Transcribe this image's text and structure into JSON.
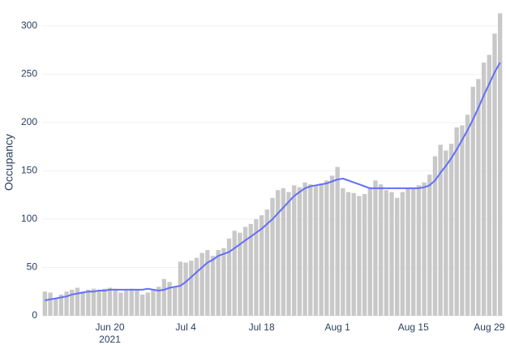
{
  "chart_data": {
    "type": "combo",
    "y_label": "Occupancy",
    "x": [
      "2021-06-08",
      "2021-06-09",
      "2021-06-10",
      "2021-06-11",
      "2021-06-12",
      "2021-06-13",
      "2021-06-14",
      "2021-06-15",
      "2021-06-16",
      "2021-06-17",
      "2021-06-18",
      "2021-06-19",
      "2021-06-20",
      "2021-06-21",
      "2021-06-22",
      "2021-06-23",
      "2021-06-24",
      "2021-06-25",
      "2021-06-26",
      "2021-06-27",
      "2021-06-28",
      "2021-06-29",
      "2021-06-30",
      "2021-07-01",
      "2021-07-02",
      "2021-07-03",
      "2021-07-04",
      "2021-07-05",
      "2021-07-06",
      "2021-07-07",
      "2021-07-08",
      "2021-07-09",
      "2021-07-10",
      "2021-07-11",
      "2021-07-12",
      "2021-07-13",
      "2021-07-14",
      "2021-07-15",
      "2021-07-16",
      "2021-07-17",
      "2021-07-18",
      "2021-07-19",
      "2021-07-20",
      "2021-07-21",
      "2021-07-22",
      "2021-07-23",
      "2021-07-24",
      "2021-07-25",
      "2021-07-26",
      "2021-07-27",
      "2021-07-28",
      "2021-07-29",
      "2021-07-30",
      "2021-07-31",
      "2021-08-01",
      "2021-08-02",
      "2021-08-03",
      "2021-08-04",
      "2021-08-05",
      "2021-08-06",
      "2021-08-07",
      "2021-08-08",
      "2021-08-09",
      "2021-08-10",
      "2021-08-11",
      "2021-08-12",
      "2021-08-13",
      "2021-08-14",
      "2021-08-15",
      "2021-08-16",
      "2021-08-17",
      "2021-08-18",
      "2021-08-19",
      "2021-08-20",
      "2021-08-21",
      "2021-08-22",
      "2021-08-23",
      "2021-08-24",
      "2021-08-25",
      "2021-08-26",
      "2021-08-27",
      "2021-08-28",
      "2021-08-29",
      "2021-08-30",
      "2021-08-31"
    ],
    "series": [
      {
        "type": "bar",
        "color": "#c8c8c8",
        "values": [
          25,
          24,
          18,
          22,
          25,
          27,
          29,
          25,
          27,
          28,
          27,
          28,
          29,
          28,
          24,
          26,
          28,
          27,
          22,
          24,
          27,
          30,
          38,
          35,
          30,
          56,
          55,
          57,
          60,
          65,
          68,
          62,
          68,
          70,
          80,
          88,
          86,
          92,
          95,
          100,
          104,
          110,
          122,
          130,
          132,
          128,
          135,
          133,
          138,
          136,
          135,
          137,
          140,
          145,
          154,
          132,
          128,
          127,
          124,
          126,
          133,
          140,
          136,
          130,
          128,
          122,
          128,
          132,
          132,
          135,
          138,
          146,
          165,
          177,
          171,
          178,
          195,
          197,
          208,
          237,
          245,
          262,
          270,
          292,
          313
        ]
      },
      {
        "type": "line",
        "color": "#636efa",
        "values": [
          16,
          17,
          18,
          19,
          20,
          22,
          23,
          24,
          25,
          25,
          26,
          26,
          27,
          27,
          27,
          27,
          27,
          27,
          27,
          28,
          27,
          26,
          27,
          29,
          30,
          31,
          35,
          40,
          45,
          50,
          55,
          58,
          62,
          64,
          66,
          70,
          74,
          78,
          82,
          86,
          90,
          95,
          100,
          106,
          112,
          118,
          124,
          128,
          132,
          134,
          135,
          136,
          137,
          139,
          141,
          142,
          140,
          138,
          136,
          134,
          132,
          132,
          132,
          132,
          132,
          132,
          132,
          132,
          132,
          132,
          133,
          135,
          140,
          148,
          155,
          163,
          172,
          182,
          192,
          203,
          215,
          228,
          240,
          252,
          262
        ]
      }
    ],
    "xlim": [
      "2021-06-08",
      "2021-08-31"
    ],
    "xticks": [
      {
        "value": "2021-06-20",
        "label": "Jun 20"
      },
      {
        "value": "2021-07-04",
        "label": "Jul 4"
      },
      {
        "value": "2021-07-18",
        "label": "Jul 18"
      },
      {
        "value": "2021-08-01",
        "label": "Aug 1"
      },
      {
        "value": "2021-08-15",
        "label": "Aug 15"
      },
      {
        "value": "2021-08-29",
        "label": "Aug 29"
      }
    ],
    "x_year_label": "2021",
    "ylim": [
      0,
      315
    ],
    "yticks": [
      0,
      50,
      100,
      150,
      200,
      250,
      300
    ],
    "grid": true
  }
}
